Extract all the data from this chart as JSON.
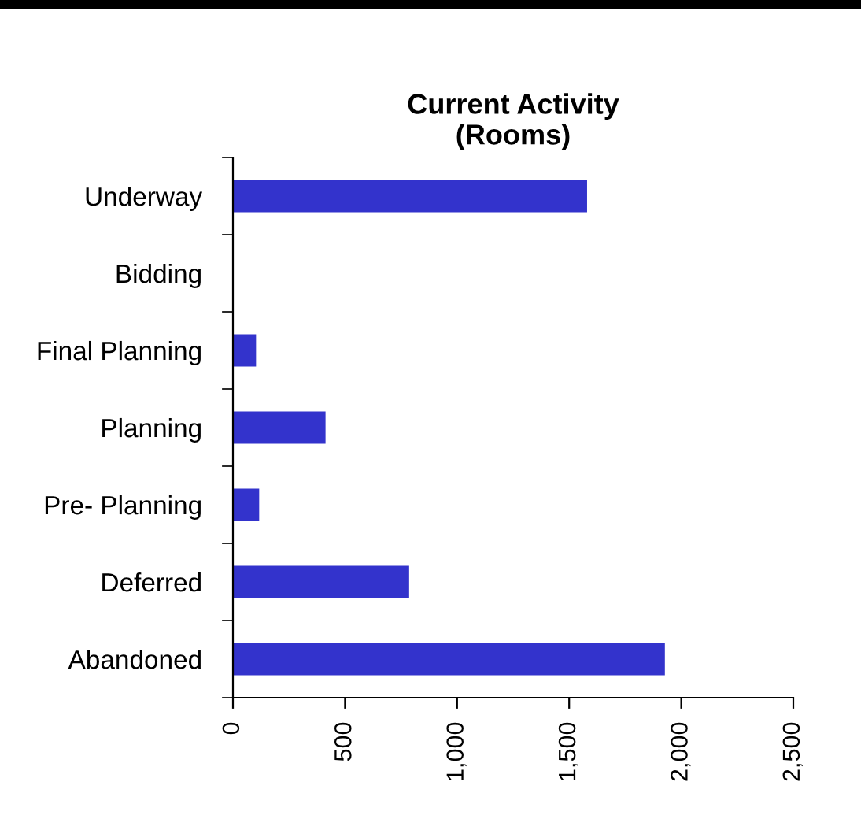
{
  "chart_data": {
    "type": "bar",
    "orientation": "horizontal",
    "title": "Current Activity\n(Rooms)",
    "categories": [
      "Underway",
      "Bidding",
      "Final Planning",
      "Planning",
      "Pre- Planning",
      "Deferred",
      "Abandoned"
    ],
    "values": [
      1580,
      0,
      103,
      413,
      117,
      786,
      1927
    ],
    "color": "#3333cc",
    "xlim": [
      0,
      2500
    ],
    "xticks": [
      0,
      {
        "value": 500,
        "label": "500"
      },
      {
        "value": 1000,
        "label": "1,000"
      },
      {
        "value": 1500,
        "label": "1,500"
      },
      {
        "value": 2000,
        "label": "2,000"
      },
      {
        "value": 2500,
        "label": "2,500"
      }
    ],
    "grid": false,
    "legend": false
  }
}
